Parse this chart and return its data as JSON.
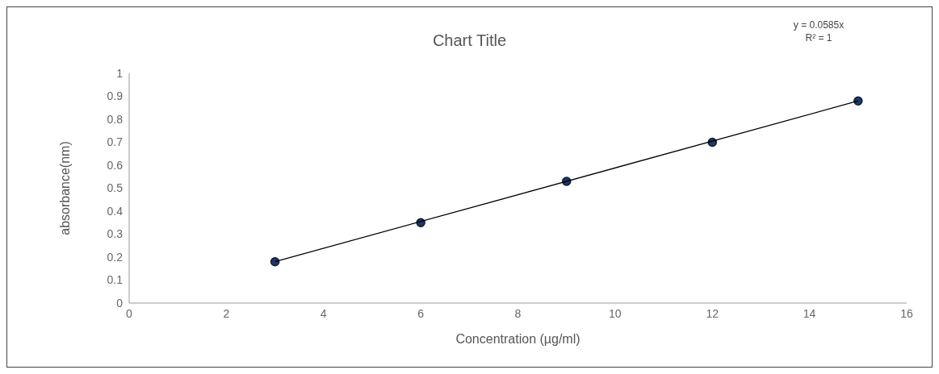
{
  "chart_data": {
    "type": "scatter",
    "title": "Chart Title",
    "xlabel": "Concentration (µg/ml)",
    "ylabel": "absorbance(nm)",
    "annotations": [
      "y = 0.0585x",
      "R² = 1"
    ],
    "series": [
      {
        "color": "#1f3864",
        "marker": "circle",
        "x": [
          3,
          6,
          9,
          12,
          15
        ],
        "values": [
          0.18,
          0.35,
          0.53,
          0.7,
          0.88
        ]
      },
      {
        "type": "line",
        "color": "#000000",
        "marker": "none",
        "x": [
          3,
          15
        ],
        "values": [
          0.18,
          0.88
        ]
      }
    ],
    "xlim": [
      0,
      16
    ],
    "xticks": [
      0,
      2,
      4,
      6,
      8,
      10,
      12,
      14,
      16
    ],
    "ylim": [
      0,
      1
    ],
    "yticks": [
      0,
      0.1,
      0.2,
      0.3,
      0.4,
      0.5,
      0.6,
      0.7,
      0.8,
      0.9,
      1
    ],
    "line_style": "solid",
    "grid": false,
    "legend": false
  }
}
